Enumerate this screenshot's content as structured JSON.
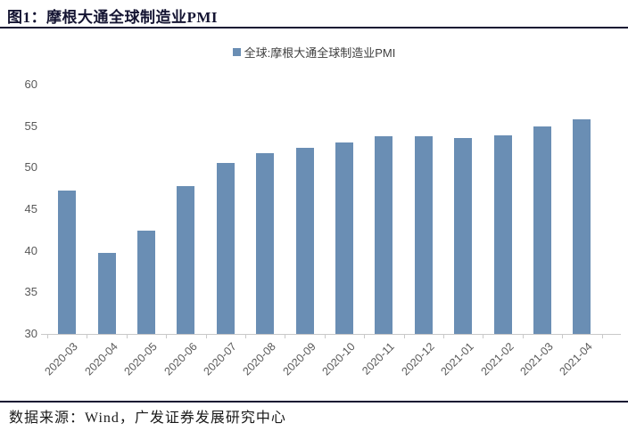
{
  "header": {
    "title": "图1：摩根大通全球制造业PMI"
  },
  "legend": {
    "label": "全球:摩根大通全球制造业PMI"
  },
  "footer": {
    "source": "数据来源：Wind，广发证券发展研究中心"
  },
  "colors": {
    "bar": "#6A8EB4",
    "title_text": "#141432",
    "header_divider": "#141432",
    "footer_divider": "#141432",
    "axis_text": "#595959",
    "axis_line": "#C9C9C9",
    "legend_text": "#3F3F3F",
    "footer_text": "#1A1A1A",
    "background": "#FFFFFF"
  },
  "chart_data": {
    "type": "bar",
    "title": "摩根大通全球制造业PMI",
    "series_name": "全球:摩根大通全球制造业PMI",
    "categories": [
      "2020-03",
      "2020-04",
      "2020-05",
      "2020-06",
      "2020-07",
      "2020-08",
      "2020-09",
      "2020-10",
      "2020-11",
      "2020-12",
      "2021-01",
      "2021-02",
      "2021-03",
      "2021-04"
    ],
    "values": [
      47.3,
      39.8,
      42.4,
      47.8,
      50.6,
      51.8,
      52.4,
      53.0,
      53.8,
      53.8,
      53.6,
      53.9,
      55.0,
      55.8
    ],
    "xlabel": "",
    "ylabel": "",
    "ylim": [
      30,
      60
    ],
    "yticks": [
      30,
      35,
      40,
      45,
      50,
      55,
      60
    ],
    "grid": false,
    "legend_position": "top-center",
    "x_tick_rotation": 45
  }
}
